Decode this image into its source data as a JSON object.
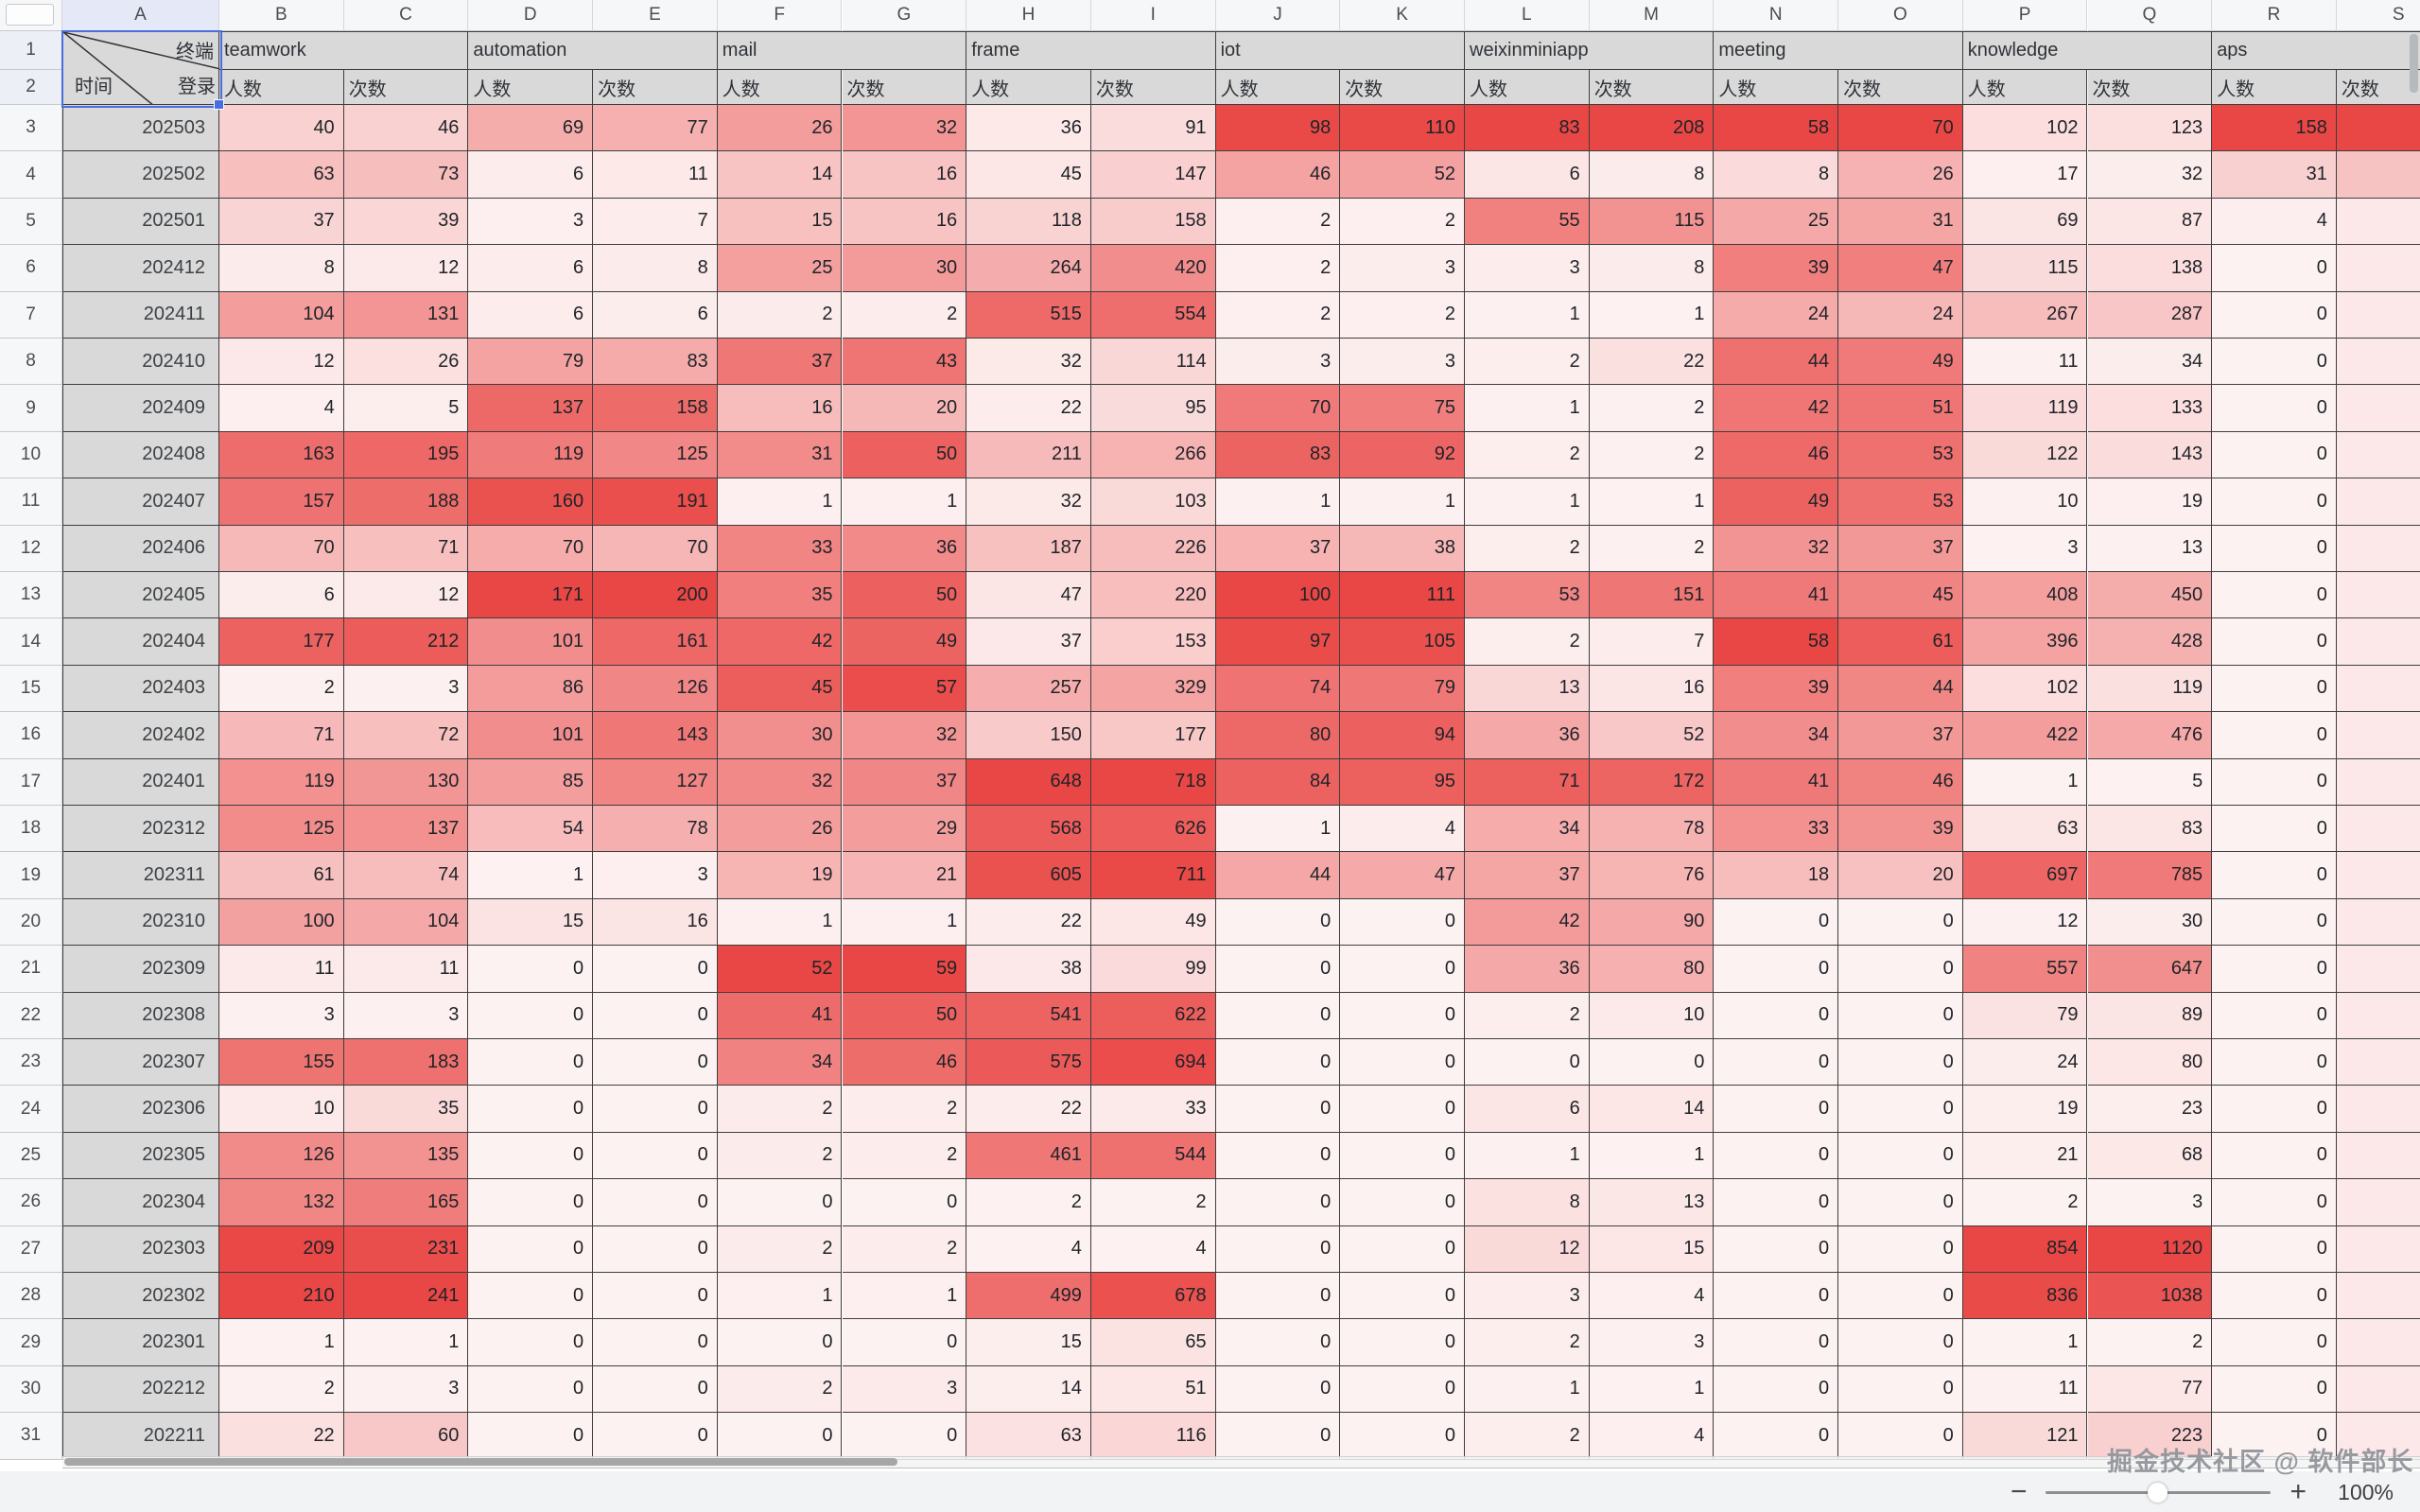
{
  "sheet": {
    "corner": {
      "top_right": "终端",
      "middle_right": "登录",
      "bottom_left": "时间"
    },
    "column_letters": [
      "A",
      "B",
      "C",
      "D",
      "E",
      "F",
      "G",
      "H",
      "I",
      "J",
      "K",
      "L",
      "M",
      "N",
      "O",
      "P",
      "Q",
      "R",
      "S"
    ],
    "groups": [
      {
        "name": "teamwork"
      },
      {
        "name": "automation"
      },
      {
        "name": "mail"
      },
      {
        "name": "frame"
      },
      {
        "name": "iot"
      },
      {
        "name": "weixinminiapp"
      },
      {
        "name": "meeting"
      },
      {
        "name": "knowledge"
      },
      {
        "name": "aps"
      }
    ],
    "subheaders": [
      "人数",
      "次数"
    ],
    "rows": [
      {
        "n": 3,
        "date": "202503",
        "values": [
          40,
          46,
          69,
          77,
          26,
          32,
          36,
          91,
          98,
          110,
          83,
          208,
          58,
          70,
          102,
          123,
          158
        ],
        "s_tint": 1.0
      },
      {
        "n": 4,
        "date": "202502",
        "values": [
          63,
          73,
          6,
          11,
          14,
          16,
          45,
          147,
          46,
          52,
          6,
          8,
          8,
          26,
          17,
          32,
          31
        ],
        "s_tint": 0.28
      },
      {
        "n": 5,
        "date": "202501",
        "values": [
          37,
          39,
          3,
          7,
          15,
          16,
          118,
          158,
          2,
          2,
          55,
          115,
          25,
          31,
          69,
          87,
          4
        ],
        "s_tint": 0.06
      },
      {
        "n": 6,
        "date": "202412",
        "values": [
          8,
          12,
          6,
          8,
          25,
          30,
          264,
          420,
          2,
          3,
          3,
          8,
          39,
          47,
          115,
          138,
          0
        ],
        "s_tint": 0.06
      },
      {
        "n": 7,
        "date": "202411",
        "values": [
          104,
          131,
          6,
          6,
          2,
          2,
          515,
          554,
          2,
          2,
          1,
          1,
          24,
          24,
          267,
          287,
          0
        ],
        "s_tint": 0.06
      },
      {
        "n": 8,
        "date": "202410",
        "values": [
          12,
          26,
          79,
          83,
          37,
          43,
          32,
          114,
          3,
          3,
          2,
          22,
          44,
          49,
          11,
          34,
          0
        ],
        "s_tint": 0.06
      },
      {
        "n": 9,
        "date": "202409",
        "values": [
          4,
          5,
          137,
          158,
          16,
          20,
          22,
          95,
          70,
          75,
          1,
          2,
          42,
          51,
          119,
          133,
          0
        ],
        "s_tint": 0.06
      },
      {
        "n": 10,
        "date": "202408",
        "values": [
          163,
          195,
          119,
          125,
          31,
          50,
          211,
          266,
          83,
          92,
          2,
          2,
          46,
          53,
          122,
          143,
          0
        ],
        "s_tint": 0.06
      },
      {
        "n": 11,
        "date": "202407",
        "values": [
          157,
          188,
          160,
          191,
          1,
          1,
          32,
          103,
          1,
          1,
          1,
          1,
          49,
          53,
          10,
          19,
          0
        ],
        "s_tint": 0.06
      },
      {
        "n": 12,
        "date": "202406",
        "values": [
          70,
          71,
          70,
          70,
          33,
          36,
          187,
          226,
          37,
          38,
          2,
          2,
          32,
          37,
          3,
          13,
          0
        ],
        "s_tint": 0.06
      },
      {
        "n": 13,
        "date": "202405",
        "values": [
          6,
          12,
          171,
          200,
          35,
          50,
          47,
          220,
          100,
          111,
          53,
          151,
          41,
          45,
          408,
          450,
          0
        ],
        "s_tint": 0.06
      },
      {
        "n": 14,
        "date": "202404",
        "values": [
          177,
          212,
          101,
          161,
          42,
          49,
          37,
          153,
          97,
          105,
          2,
          7,
          58,
          61,
          396,
          428,
          0
        ],
        "s_tint": 0.06
      },
      {
        "n": 15,
        "date": "202403",
        "values": [
          2,
          3,
          86,
          126,
          45,
          57,
          257,
          329,
          74,
          79,
          13,
          16,
          39,
          44,
          102,
          119,
          0
        ],
        "s_tint": 0.06
      },
      {
        "n": 16,
        "date": "202402",
        "values": [
          71,
          72,
          101,
          143,
          30,
          32,
          150,
          177,
          80,
          94,
          36,
          52,
          34,
          37,
          422,
          476,
          0
        ],
        "s_tint": 0.06
      },
      {
        "n": 17,
        "date": "202401",
        "values": [
          119,
          130,
          85,
          127,
          32,
          37,
          648,
          718,
          84,
          95,
          71,
          172,
          41,
          46,
          1,
          5,
          0
        ],
        "s_tint": 0.06
      },
      {
        "n": 18,
        "date": "202312",
        "values": [
          125,
          137,
          54,
          78,
          26,
          29,
          568,
          626,
          1,
          4,
          34,
          78,
          33,
          39,
          63,
          83,
          0
        ],
        "s_tint": 0.06
      },
      {
        "n": 19,
        "date": "202311",
        "values": [
          61,
          74,
          1,
          3,
          19,
          21,
          605,
          711,
          44,
          47,
          37,
          76,
          18,
          20,
          697,
          785,
          0
        ],
        "s_tint": 0.06
      },
      {
        "n": 20,
        "date": "202310",
        "values": [
          100,
          104,
          15,
          16,
          1,
          1,
          22,
          49,
          0,
          0,
          42,
          90,
          0,
          0,
          12,
          30,
          0
        ],
        "s_tint": 0.06
      },
      {
        "n": 21,
        "date": "202309",
        "values": [
          11,
          11,
          0,
          0,
          52,
          59,
          38,
          99,
          0,
          0,
          36,
          80,
          0,
          0,
          557,
          647,
          0
        ],
        "s_tint": 0.06
      },
      {
        "n": 22,
        "date": "202308",
        "values": [
          3,
          3,
          0,
          0,
          41,
          50,
          541,
          622,
          0,
          0,
          2,
          10,
          0,
          0,
          79,
          89,
          0
        ],
        "s_tint": 0.06
      },
      {
        "n": 23,
        "date": "202307",
        "values": [
          155,
          183,
          0,
          0,
          34,
          46,
          575,
          694,
          0,
          0,
          0,
          0,
          0,
          0,
          24,
          80,
          0
        ],
        "s_tint": 0.06
      },
      {
        "n": 24,
        "date": "202306",
        "values": [
          10,
          35,
          0,
          0,
          2,
          2,
          22,
          33,
          0,
          0,
          6,
          14,
          0,
          0,
          19,
          23,
          0
        ],
        "s_tint": 0.06
      },
      {
        "n": 25,
        "date": "202305",
        "values": [
          126,
          135,
          0,
          0,
          2,
          2,
          461,
          544,
          0,
          0,
          1,
          1,
          0,
          0,
          21,
          68,
          0
        ],
        "s_tint": 0.06
      },
      {
        "n": 26,
        "date": "202304",
        "values": [
          132,
          165,
          0,
          0,
          0,
          0,
          2,
          2,
          0,
          0,
          8,
          13,
          0,
          0,
          2,
          3,
          0
        ],
        "s_tint": 0.06
      },
      {
        "n": 27,
        "date": "202303",
        "values": [
          209,
          231,
          0,
          0,
          2,
          2,
          4,
          4,
          0,
          0,
          12,
          15,
          0,
          0,
          854,
          1120,
          0
        ],
        "s_tint": 0.06
      },
      {
        "n": 28,
        "date": "202302",
        "values": [
          210,
          241,
          0,
          0,
          1,
          1,
          499,
          678,
          0,
          0,
          3,
          4,
          0,
          0,
          836,
          1038,
          0
        ],
        "s_tint": 0.06
      },
      {
        "n": 29,
        "date": "202301",
        "values": [
          1,
          1,
          0,
          0,
          0,
          0,
          15,
          65,
          0,
          0,
          2,
          3,
          0,
          0,
          1,
          2,
          0
        ],
        "s_tint": 0.06
      },
      {
        "n": 30,
        "date": "202212",
        "values": [
          2,
          3,
          0,
          0,
          2,
          3,
          14,
          51,
          0,
          0,
          1,
          1,
          0,
          0,
          11,
          77,
          0
        ],
        "s_tint": 0.06
      },
      {
        "n": 31,
        "date": "202211",
        "values": [
          22,
          60,
          0,
          0,
          0,
          0,
          63,
          116,
          0,
          0,
          2,
          4,
          0,
          0,
          121,
          223,
          0
        ],
        "s_tint": 0.06
      }
    ]
  },
  "colors": {
    "heat_max": "#e94745",
    "heat_min": "#fdf2f2",
    "header_gray": "#d9d9d9",
    "selection_blue": "#4a6ee0"
  },
  "watermark": "掘金技术社区 @ 软件部长",
  "zoom_control": {
    "minus": "−",
    "plus": "+",
    "level": "100%"
  }
}
